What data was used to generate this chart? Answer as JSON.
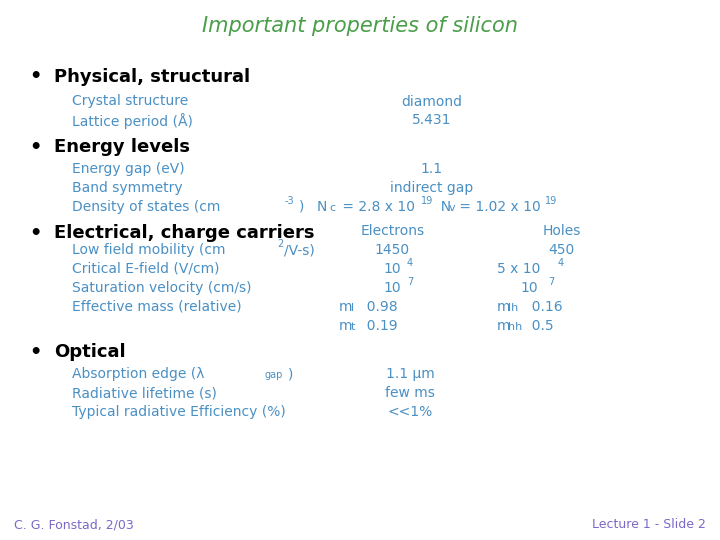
{
  "title": "Important properties of silicon",
  "title_color": "#4a9e4a",
  "bg_color": "#ffffff",
  "bullet_color": "#000000",
  "text_color": "#4a90c4",
  "bold_color": "#000000",
  "footer_left": "C. G. Fonstad, 2/03",
  "footer_right": "Lecture 1 - Slide 2",
  "footer_color": "#7b68c8"
}
